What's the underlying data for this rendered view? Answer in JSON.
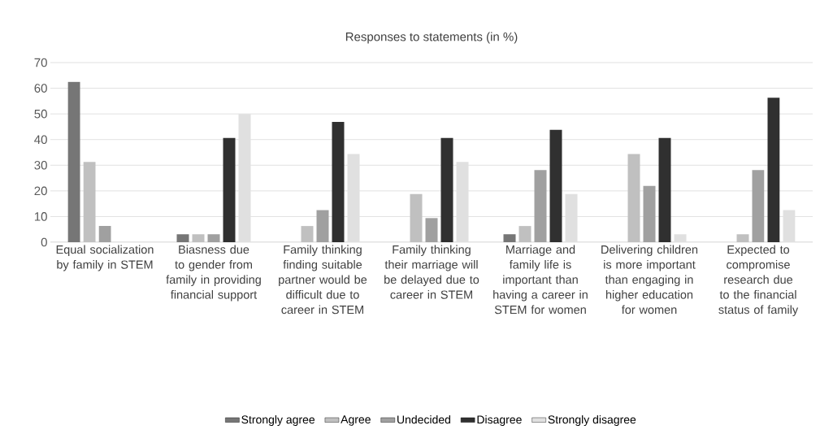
{
  "chart_data": {
    "type": "bar",
    "title": "Responses to statements (in %)",
    "categories": [
      "Equal socialization by family in STEM",
      "Biasness due to gender from family in providing financial support",
      "Family thinking finding suitable partner would be difficult due to career in STEM",
      "Family thinking their marriage will be delayed due to career in STEM",
      "Marriage and family life is important than having a career in STEM for women",
      "Delivering children is more important than engaging in higher education for women",
      "Expected to compromise research due to the financial status of family"
    ],
    "series": [
      {
        "name": "Strongly agree",
        "color": "#767676",
        "values": [
          62.5,
          3.1,
          0,
          0,
          3.1,
          0,
          0
        ]
      },
      {
        "name": "Agree",
        "color": "#c0c0c0",
        "values": [
          31.3,
          3.1,
          6.3,
          18.8,
          6.3,
          34.4,
          3.1
        ]
      },
      {
        "name": "Undecided",
        "color": "#a0a0a0",
        "values": [
          6.3,
          3.1,
          12.5,
          9.4,
          28.1,
          21.9,
          28.1
        ]
      },
      {
        "name": "Disagree",
        "color": "#303030",
        "values": [
          0,
          40.6,
          46.9,
          40.6,
          43.8,
          40.6,
          56.3
        ]
      },
      {
        "name": "Strongly disagree",
        "color": "#e0e0e0",
        "values": [
          0,
          50,
          34.4,
          31.3,
          18.8,
          3.1,
          12.5
        ]
      }
    ],
    "ylim": [
      0,
      70
    ],
    "yticks": [
      0,
      10,
      20,
      30,
      40,
      50,
      60,
      70
    ],
    "grid": "y",
    "legend": "bottom"
  }
}
